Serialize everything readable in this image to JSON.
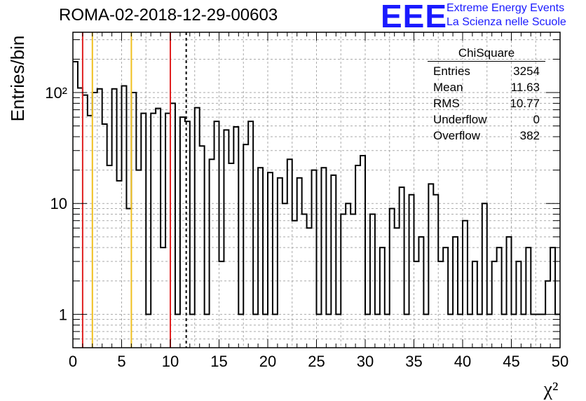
{
  "header": {
    "title": "ROMA-02-2018-12-29-00603",
    "logo_text": "EEE",
    "logo_line1": "Extreme Energy Events",
    "logo_line2": "La Scienza nelle Scuole",
    "logo_color": "#1a1aff"
  },
  "stats": {
    "title": "ChiSquare",
    "rows": [
      {
        "label": "Entries",
        "value": "3254"
      },
      {
        "label": "Mean",
        "value": "11.63"
      },
      {
        "label": "RMS",
        "value": "10.77"
      },
      {
        "label": "Underflow",
        "value": "0"
      },
      {
        "label": "Overflow",
        "value": "382"
      }
    ]
  },
  "chart_data": {
    "type": "histogram",
    "xlabel": "χ²",
    "ylabel": "Entries/bin",
    "xlim": [
      0,
      50
    ],
    "ylim": [
      0.5,
      350
    ],
    "y_scale": "log",
    "grid": true,
    "x_ticks": [
      "0",
      "5",
      "10",
      "15",
      "20",
      "25",
      "30",
      "35",
      "40",
      "45",
      "50"
    ],
    "y_ticks": [
      {
        "value": 1,
        "label": "1"
      },
      {
        "value": 10,
        "label": "10"
      },
      {
        "value": 100,
        "label": "10²"
      }
    ],
    "bin_width": 0.5,
    "values": [
      190,
      110,
      95,
      62,
      100,
      108,
      52,
      22,
      108,
      16,
      115,
      9,
      100,
      20,
      65,
      1,
      65,
      72,
      4,
      65,
      80,
      1,
      60,
      55,
      1,
      73,
      33,
      1,
      25,
      55,
      3,
      46,
      23,
      49,
      1,
      34,
      55,
      1,
      21,
      1,
      19,
      1,
      17,
      10,
      25,
      7,
      17,
      8,
      6,
      20,
      1,
      21,
      1,
      18,
      1,
      8,
      10,
      8,
      22,
      27,
      1,
      8,
      1,
      4,
      1,
      9,
      6,
      14,
      1,
      12,
      3,
      5,
      1,
      15,
      12,
      3,
      4,
      1,
      5,
      1,
      7,
      1,
      3,
      1,
      10,
      1,
      3,
      4,
      1,
      5,
      1,
      3,
      1,
      4,
      1,
      1,
      1,
      2,
      4,
      1
    ],
    "vertical_lines": [
      {
        "x": 1,
        "color": "#e02020",
        "style": "solid"
      },
      {
        "x": 2,
        "color": "#f0c020",
        "style": "solid"
      },
      {
        "x": 6,
        "color": "#f0c020",
        "style": "solid"
      },
      {
        "x": 10,
        "color": "#e02020",
        "style": "solid"
      },
      {
        "x": 11.63,
        "color": "#000000",
        "style": "dashed"
      }
    ]
  }
}
